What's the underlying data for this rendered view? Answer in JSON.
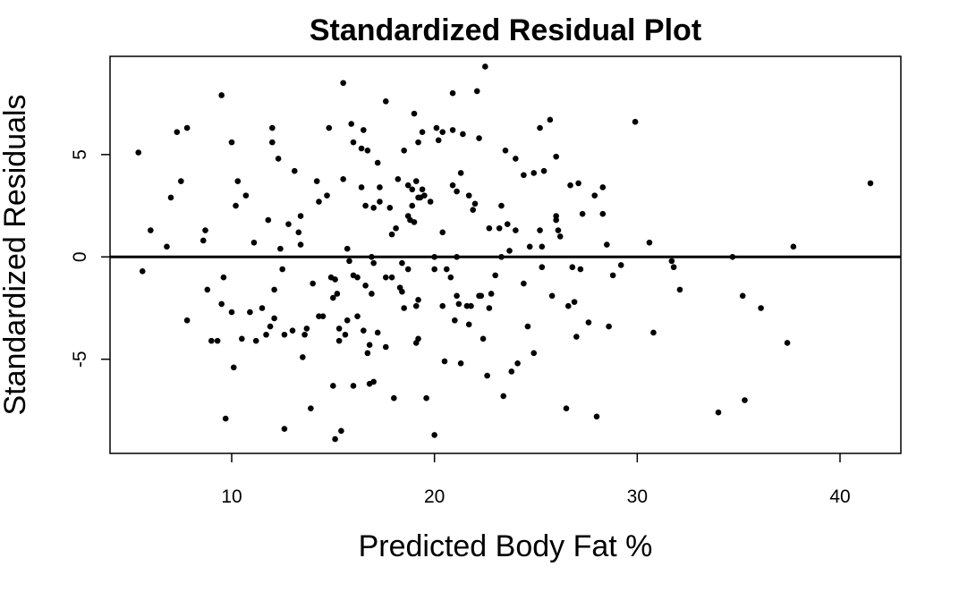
{
  "chart_data": {
    "type": "scatter",
    "title": "Standardized Residual Plot",
    "xlabel": "Predicted Body Fat %",
    "ylabel": "Standardized Residuals",
    "xlim": [
      4,
      43
    ],
    "ylim": [
      -9.6,
      9.8
    ],
    "xticks": [
      10,
      20,
      30,
      40
    ],
    "yticks": [
      -5,
      0,
      5
    ],
    "grid": false,
    "reference_line": {
      "y": 0
    },
    "marker_color": "#000000",
    "points": [
      [
        5.4,
        5.1
      ],
      [
        5.6,
        -0.7
      ],
      [
        6.0,
        1.3
      ],
      [
        6.8,
        0.5
      ],
      [
        7.0,
        2.9
      ],
      [
        7.3,
        6.1
      ],
      [
        7.5,
        3.7
      ],
      [
        7.8,
        6.3
      ],
      [
        7.8,
        -3.1
      ],
      [
        8.6,
        0.8
      ],
      [
        8.7,
        1.3
      ],
      [
        8.8,
        -1.6
      ],
      [
        9.0,
        -4.1
      ],
      [
        9.3,
        -4.1
      ],
      [
        9.5,
        -2.3
      ],
      [
        9.5,
        7.9
      ],
      [
        9.6,
        -1.0
      ],
      [
        9.7,
        -7.9
      ],
      [
        10.0,
        -2.7
      ],
      [
        10.0,
        5.6
      ],
      [
        10.1,
        -5.4
      ],
      [
        10.2,
        2.5
      ],
      [
        10.3,
        3.7
      ],
      [
        10.5,
        -4.0
      ],
      [
        10.7,
        3.0
      ],
      [
        10.9,
        -2.7
      ],
      [
        11.1,
        0.7
      ],
      [
        11.2,
        -4.1
      ],
      [
        11.5,
        -2.5
      ],
      [
        11.7,
        -3.8
      ],
      [
        11.9,
        -3.4
      ],
      [
        11.8,
        1.8
      ],
      [
        12.0,
        6.3
      ],
      [
        12.0,
        5.6
      ],
      [
        12.1,
        -1.6
      ],
      [
        12.1,
        -3.0
      ],
      [
        12.3,
        4.8
      ],
      [
        12.4,
        0.4
      ],
      [
        12.5,
        -0.6
      ],
      [
        12.6,
        -3.8
      ],
      [
        12.6,
        -8.4
      ],
      [
        12.8,
        1.6
      ],
      [
        13.0,
        -3.6
      ],
      [
        13.1,
        4.2
      ],
      [
        13.3,
        1.2
      ],
      [
        13.4,
        2.0
      ],
      [
        13.4,
        0.6
      ],
      [
        13.5,
        -4.9
      ],
      [
        13.6,
        -3.8
      ],
      [
        13.7,
        -3.5
      ],
      [
        13.9,
        -7.4
      ],
      [
        14.0,
        -1.3
      ],
      [
        14.2,
        3.7
      ],
      [
        14.3,
        2.7
      ],
      [
        14.3,
        -2.9
      ],
      [
        14.5,
        -2.9
      ],
      [
        14.7,
        3.0
      ],
      [
        14.8,
        6.3
      ],
      [
        14.9,
        -1.0
      ],
      [
        15.0,
        -6.3
      ],
      [
        15.0,
        -2.0
      ],
      [
        15.1,
        -1.1
      ],
      [
        15.1,
        -8.9
      ],
      [
        15.2,
        -1.8
      ],
      [
        15.3,
        -3.5
      ],
      [
        15.3,
        -4.1
      ],
      [
        15.4,
        -8.5
      ],
      [
        15.5,
        8.5
      ],
      [
        15.5,
        3.8
      ],
      [
        15.6,
        -3.8
      ],
      [
        15.7,
        -3.1
      ],
      [
        15.7,
        0.4
      ],
      [
        15.8,
        -0.2
      ],
      [
        15.9,
        6.5
      ],
      [
        16.0,
        -0.9
      ],
      [
        16.0,
        -6.3
      ],
      [
        16.0,
        5.6
      ],
      [
        16.2,
        -1.0
      ],
      [
        16.2,
        -2.9
      ],
      [
        16.4,
        3.4
      ],
      [
        16.4,
        5.3
      ],
      [
        16.5,
        6.2
      ],
      [
        16.5,
        -3.6
      ],
      [
        16.6,
        2.5
      ],
      [
        16.6,
        -1.4
      ],
      [
        16.7,
        5.2
      ],
      [
        16.7,
        -4.7
      ],
      [
        16.8,
        -4.3
      ],
      [
        16.8,
        -6.2
      ],
      [
        16.9,
        0.0
      ],
      [
        16.9,
        -1.8
      ],
      [
        17.0,
        -0.3
      ],
      [
        17.0,
        -6.1
      ],
      [
        17.0,
        2.4
      ],
      [
        17.2,
        4.6
      ],
      [
        17.2,
        -3.7
      ],
      [
        17.3,
        2.7
      ],
      [
        17.3,
        3.4
      ],
      [
        17.6,
        7.6
      ],
      [
        17.6,
        -1.0
      ],
      [
        17.6,
        -4.4
      ],
      [
        17.8,
        2.4
      ],
      [
        17.9,
        -1.0
      ],
      [
        17.9,
        1.1
      ],
      [
        18.0,
        -6.9
      ],
      [
        18.1,
        1.4
      ],
      [
        18.2,
        3.8
      ],
      [
        18.3,
        -1.5
      ],
      [
        18.4,
        -1.7
      ],
      [
        18.4,
        -0.3
      ],
      [
        18.5,
        5.2
      ],
      [
        18.5,
        -2.5
      ],
      [
        18.7,
        -0.6
      ],
      [
        18.7,
        3.5
      ],
      [
        18.7,
        2.0
      ],
      [
        18.8,
        1.8
      ],
      [
        18.9,
        2.5
      ],
      [
        18.9,
        3.3
      ],
      [
        19.0,
        7.0
      ],
      [
        19.0,
        1.7
      ],
      [
        19.1,
        -2.4
      ],
      [
        19.1,
        -4.2
      ],
      [
        19.1,
        3.7
      ],
      [
        19.2,
        5.6
      ],
      [
        19.2,
        -4.0
      ],
      [
        19.2,
        2.9
      ],
      [
        19.2,
        -2.1
      ],
      [
        19.3,
        2.9
      ],
      [
        19.4,
        3.3
      ],
      [
        19.4,
        6.1
      ],
      [
        19.5,
        3.0
      ],
      [
        19.6,
        -6.9
      ],
      [
        19.8,
        2.7
      ],
      [
        20.0,
        -0.6
      ],
      [
        20.0,
        -8.7
      ],
      [
        20.0,
        0.0
      ],
      [
        20.1,
        6.3
      ],
      [
        20.2,
        5.7
      ],
      [
        20.4,
        -2.4
      ],
      [
        20.4,
        6.1
      ],
      [
        20.4,
        1.2
      ],
      [
        20.5,
        -5.1
      ],
      [
        20.6,
        -0.6
      ],
      [
        20.8,
        -1.0
      ],
      [
        20.9,
        6.2
      ],
      [
        20.9,
        8.0
      ],
      [
        20.9,
        3.5
      ],
      [
        21.0,
        -3.1
      ],
      [
        21.1,
        -1.9
      ],
      [
        21.1,
        3.2
      ],
      [
        21.1,
        0.0
      ],
      [
        21.2,
        -2.3
      ],
      [
        21.3,
        -5.2
      ],
      [
        21.3,
        4.1
      ],
      [
        21.4,
        6.0
      ],
      [
        21.6,
        -2.4
      ],
      [
        21.7,
        -3.3
      ],
      [
        21.7,
        3.0
      ],
      [
        21.8,
        -2.4
      ],
      [
        21.9,
        2.3
      ],
      [
        22.0,
        2.6
      ],
      [
        22.1,
        8.1
      ],
      [
        22.2,
        5.8
      ],
      [
        22.2,
        -1.9
      ],
      [
        22.3,
        -1.9
      ],
      [
        22.4,
        -4.0
      ],
      [
        22.5,
        9.3
      ],
      [
        22.6,
        -5.8
      ],
      [
        22.7,
        1.4
      ],
      [
        22.7,
        -2.5
      ],
      [
        22.8,
        -1.8
      ],
      [
        23.0,
        -0.9
      ],
      [
        23.2,
        1.4
      ],
      [
        23.3,
        2.5
      ],
      [
        23.3,
        0.0
      ],
      [
        23.4,
        -6.8
      ],
      [
        23.5,
        5.2
      ],
      [
        23.6,
        1.6
      ],
      [
        23.7,
        0.3
      ],
      [
        23.8,
        -5.6
      ],
      [
        24.0,
        4.8
      ],
      [
        24.0,
        1.3
      ],
      [
        24.1,
        -5.2
      ],
      [
        24.4,
        -1.3
      ],
      [
        24.4,
        4.0
      ],
      [
        24.6,
        -3.4
      ],
      [
        24.7,
        0.5
      ],
      [
        24.9,
        -4.7
      ],
      [
        24.9,
        4.1
      ],
      [
        25.2,
        6.3
      ],
      [
        25.2,
        1.3
      ],
      [
        25.3,
        -0.5
      ],
      [
        25.3,
        0.5
      ],
      [
        25.4,
        4.2
      ],
      [
        25.7,
        6.7
      ],
      [
        25.8,
        -1.9
      ],
      [
        26.0,
        1.8
      ],
      [
        26.0,
        2.0
      ],
      [
        26.0,
        4.9
      ],
      [
        26.1,
        1.3
      ],
      [
        26.2,
        1.0
      ],
      [
        26.5,
        -7.4
      ],
      [
        26.6,
        -2.4
      ],
      [
        26.7,
        3.5
      ],
      [
        26.8,
        -0.5
      ],
      [
        26.9,
        -2.2
      ],
      [
        27.0,
        -3.9
      ],
      [
        27.1,
        3.6
      ],
      [
        27.2,
        -0.6
      ],
      [
        27.3,
        2.1
      ],
      [
        27.6,
        -3.2
      ],
      [
        27.9,
        3.0
      ],
      [
        28.0,
        -7.8
      ],
      [
        28.3,
        2.1
      ],
      [
        28.3,
        3.4
      ],
      [
        28.5,
        0.6
      ],
      [
        28.6,
        -3.4
      ],
      [
        28.8,
        -0.9
      ],
      [
        29.2,
        -0.4
      ],
      [
        29.9,
        6.6
      ],
      [
        30.6,
        0.7
      ],
      [
        30.8,
        -3.7
      ],
      [
        31.7,
        -0.2
      ],
      [
        31.8,
        -0.5
      ],
      [
        32.1,
        -1.6
      ],
      [
        34.0,
        -7.6
      ],
      [
        34.7,
        0.0
      ],
      [
        35.2,
        -1.9
      ],
      [
        35.3,
        -7.0
      ],
      [
        36.1,
        -2.5
      ],
      [
        37.4,
        -4.2
      ],
      [
        37.7,
        0.5
      ],
      [
        41.5,
        3.6
      ]
    ]
  }
}
